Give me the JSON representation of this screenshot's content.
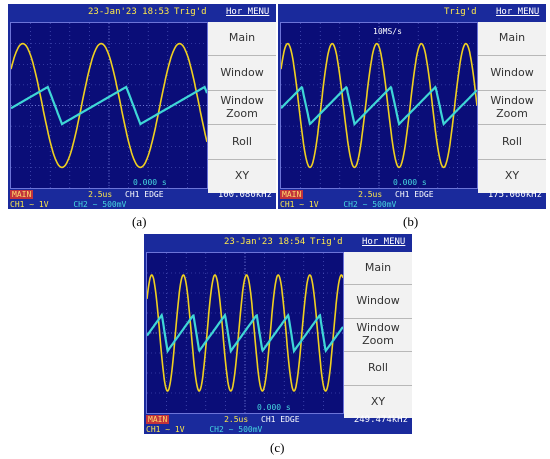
{
  "chart_data": [
    {
      "type": "line",
      "panel_label": "(a)",
      "top_date": "23-Jan'23 18:53",
      "trig_status": "Trig'd",
      "timebase": "2.5us",
      "trigger": "CH1 EDGE",
      "time_position": "0.000 s",
      "frequency": "100.080kHz",
      "ch1_scale": "CH1 ~ 1V",
      "ch2_scale": "CH2 ~ 500mV",
      "series": [
        {
          "name": "CH1",
          "color": "#f0d020",
          "waveform": "sine",
          "amplitude_div": 3.0,
          "cycles_on_screen": 2.5
        },
        {
          "name": "CH2",
          "color": "#3fd6d6",
          "waveform": "sawtooth",
          "amplitude_div": 0.9,
          "cycles_on_screen": 2.5
        }
      ]
    },
    {
      "type": "line",
      "panel_label": "(b)",
      "top_date": "",
      "overlay_text": "10MS/s",
      "trig_status": "Trig'd",
      "timebase": "2.5us",
      "trigger": "CH1 EDGE",
      "time_position": "0.000 s",
      "frequency": "175.060kHz",
      "ch1_scale": "CH1 ~ 1V",
      "ch2_scale": "CH2 ~ 500mV",
      "series": [
        {
          "name": "CH1",
          "color": "#f0d020",
          "waveform": "sine",
          "amplitude_div": 3.0,
          "cycles_on_screen": 4.4
        },
        {
          "name": "CH2",
          "color": "#3fd6d6",
          "waveform": "sawtooth",
          "amplitude_div": 0.9,
          "cycles_on_screen": 4.4
        }
      ]
    },
    {
      "type": "line",
      "panel_label": "(c)",
      "top_date": "23-Jan'23 18:54",
      "trig_status": "Trig'd",
      "timebase": "2.5us",
      "trigger": "CH1 EDGE",
      "time_position": "0.000 s",
      "frequency": "249.474kHz",
      "ch1_scale": "CH1 ~ 1V",
      "ch2_scale": "CH2 ~ 500mV",
      "series": [
        {
          "name": "CH1",
          "color": "#f0d020",
          "waveform": "sine",
          "amplitude_div": 2.9,
          "cycles_on_screen": 6.2
        },
        {
          "name": "CH2",
          "color": "#3fd6d6",
          "waveform": "sawtooth",
          "amplitude_div": 0.9,
          "cycles_on_screen": 6.2
        }
      ]
    }
  ],
  "menu": {
    "title": "Hor MENU",
    "items": [
      "Main",
      "Window",
      "Window\nZoom",
      "Roll",
      "XY"
    ]
  },
  "status": {
    "main_badge": "MAIN"
  }
}
